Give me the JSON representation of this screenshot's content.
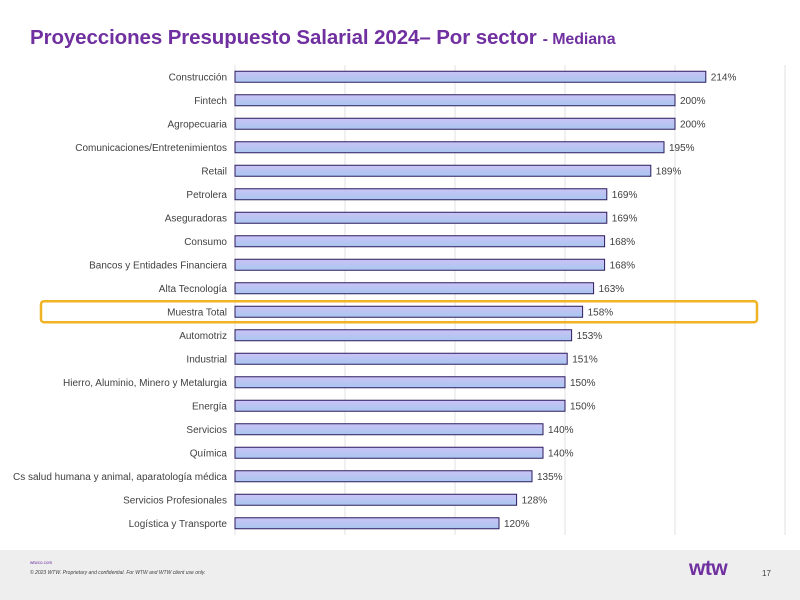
{
  "title": {
    "main": "Proyecciones Presupuesto Salarial 2024– Por sector",
    "sub": "- Mediana"
  },
  "colors": {
    "title": "#7030a0",
    "bar_fill_top": "#c9c3f5",
    "bar_fill_bottom": "#a9c6f0",
    "bar_border": "#2c1b5e",
    "highlight_border": "#f0b323",
    "brand": "#7030a0"
  },
  "chart_data": {
    "type": "bar",
    "orientation": "horizontal",
    "categories": [
      "Construcción",
      "Fintech",
      "Agropecuaria",
      "Comunicaciones/Entretenimientos",
      "Retail",
      "Petrolera",
      "Aseguradoras",
      "Consumo",
      "Bancos y Entidades Financiera",
      "Alta Tecnología",
      "Muestra Total",
      "Automotriz",
      "Industrial",
      "Hierro, Aluminio, Minero y Metalurgia",
      "Energía",
      "Servicios",
      "Química",
      "Cs salud humana y animal, aparatología médica",
      "Servicios Profesionales",
      "Logística y Transporte"
    ],
    "values": [
      214,
      200,
      200,
      195,
      189,
      169,
      169,
      168,
      168,
      163,
      158,
      153,
      151,
      150,
      150,
      140,
      140,
      135,
      128,
      120
    ],
    "value_labels": [
      "214%",
      "200%",
      "200%",
      "195%",
      "189%",
      "169%",
      "169%",
      "168%",
      "168%",
      "163%",
      "158%",
      "153%",
      "151%",
      "150%",
      "150%",
      "140%",
      "140%",
      "135%",
      "128%",
      "120%"
    ],
    "highlighted_category": "Muestra Total",
    "xlim": [
      0,
      250
    ],
    "xgrid_step": 50,
    "grid": true,
    "legend": "none"
  },
  "footer": {
    "link": "wtwco.com",
    "note": "© 2023 WTW. Proprietary and confidential. For WTW and WTW client use only.",
    "logo": "wtw",
    "page": "17"
  }
}
